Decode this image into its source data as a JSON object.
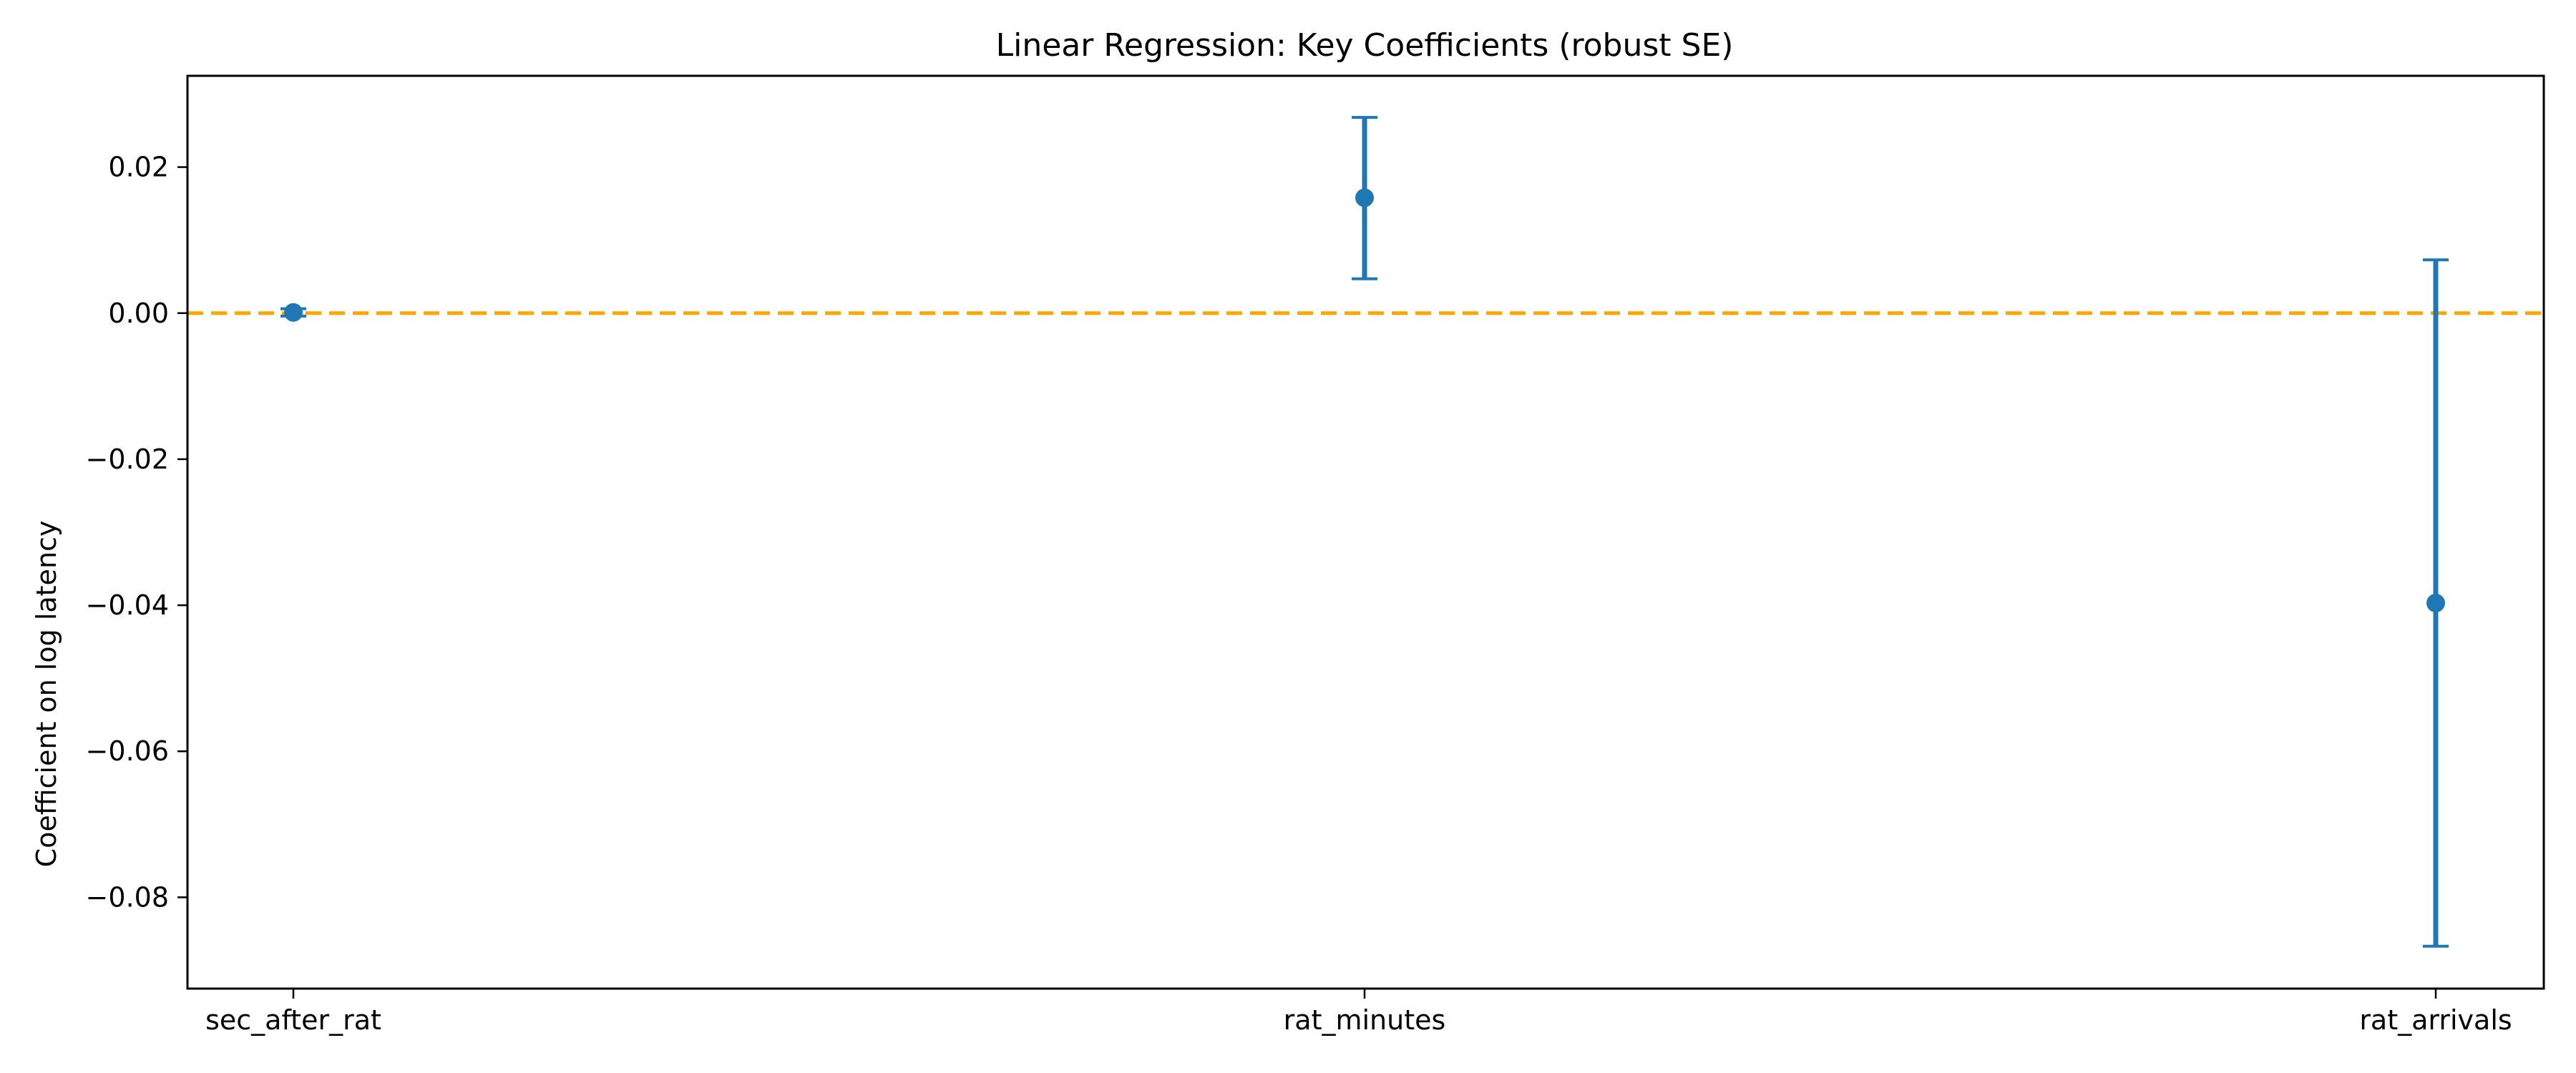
{
  "chart_data": {
    "type": "errorbar",
    "title": "Linear Regression: Key Coefficients (robust SE)",
    "xlabel": "",
    "ylabel": "Coefficient on log latency",
    "categories": [
      "sec_after_rat",
      "rat_minutes",
      "rat_arrivals"
    ],
    "series": [
      {
        "points": [
          {
            "category": "sec_after_rat",
            "estimate": 0.0001,
            "lower": -0.0004,
            "upper": 0.0006
          },
          {
            "category": "rat_minutes",
            "estimate": 0.0158,
            "lower": 0.0047,
            "upper": 0.0268
          },
          {
            "category": "rat_arrivals",
            "estimate": -0.0397,
            "lower": -0.0867,
            "upper": 0.0073
          }
        ]
      }
    ],
    "ylim": [
      -0.0925,
      0.0325
    ],
    "yticks": [
      0.02,
      0.0,
      -0.02,
      -0.04,
      -0.06,
      -0.08
    ],
    "ytick_labels": [
      "0.02",
      "0.00",
      "−0.02",
      "−0.04",
      "−0.06",
      "−0.08"
    ],
    "reference_line": {
      "y": 0.0,
      "style": "dashed"
    },
    "grid": false,
    "colors": {
      "points": "#1f77b4",
      "reference_line": "#ffa500",
      "axes": "#000000"
    }
  }
}
